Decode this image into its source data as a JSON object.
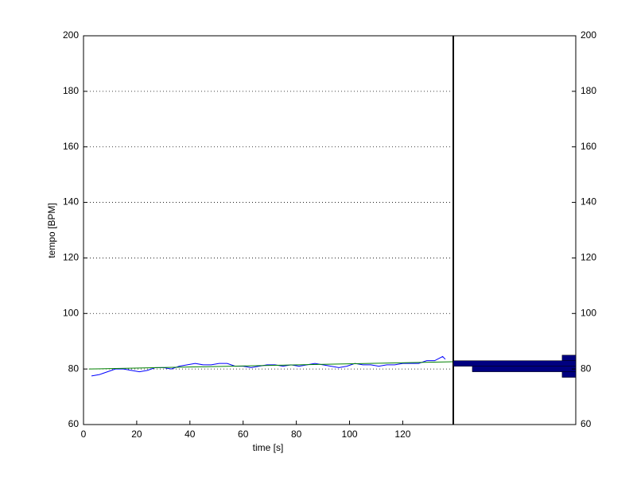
{
  "chart_data": [
    {
      "type": "line",
      "x_label": "time [s]",
      "y_label": "tempo [BPM]",
      "xlim": [
        0,
        139
      ],
      "xticks": [
        0,
        20,
        40,
        60,
        80,
        100,
        120
      ],
      "ylim": [
        60,
        200
      ],
      "yticks": [
        60,
        80,
        100,
        120,
        140,
        160,
        180,
        200
      ],
      "grid": true,
      "series": [
        {
          "color": "#0000ff",
          "x": [
            3,
            6,
            9,
            12,
            15,
            18,
            21,
            24,
            27,
            30,
            33,
            36,
            39,
            42,
            45,
            48,
            51,
            54,
            57,
            60,
            63,
            66,
            69,
            72,
            75,
            78,
            81,
            84,
            87,
            90,
            93,
            96,
            99,
            102,
            105,
            108,
            111,
            114,
            117,
            120,
            123,
            126,
            129,
            132,
            135,
            136
          ],
          "values": [
            77.5,
            78,
            79,
            80,
            80,
            79.5,
            79,
            79.5,
            80.5,
            80.5,
            80,
            81,
            81.5,
            82,
            81.5,
            81.5,
            82,
            82,
            81,
            81,
            80.5,
            81,
            81.5,
            81.5,
            81,
            81.5,
            81,
            81.5,
            82,
            81.5,
            81,
            80.5,
            81,
            82,
            81.5,
            81.5,
            81,
            81.5,
            81.5,
            82,
            82,
            82,
            83,
            83,
            84.5,
            83.5
          ]
        },
        {
          "color": "#008000",
          "x": [
            2,
            139
          ],
          "values": [
            80,
            82.6
          ]
        }
      ]
    },
    {
      "type": "histogram",
      "orientation": "horizontal",
      "color": "#000080",
      "bins": [
        77,
        79,
        81,
        83,
        85
      ],
      "values": [
        5,
        38,
        45,
        5
      ],
      "xlim": [
        0,
        45
      ],
      "ylim": [
        60,
        200
      ],
      "yticks": [
        60,
        80,
        100,
        120,
        140,
        160,
        180,
        200
      ]
    }
  ]
}
